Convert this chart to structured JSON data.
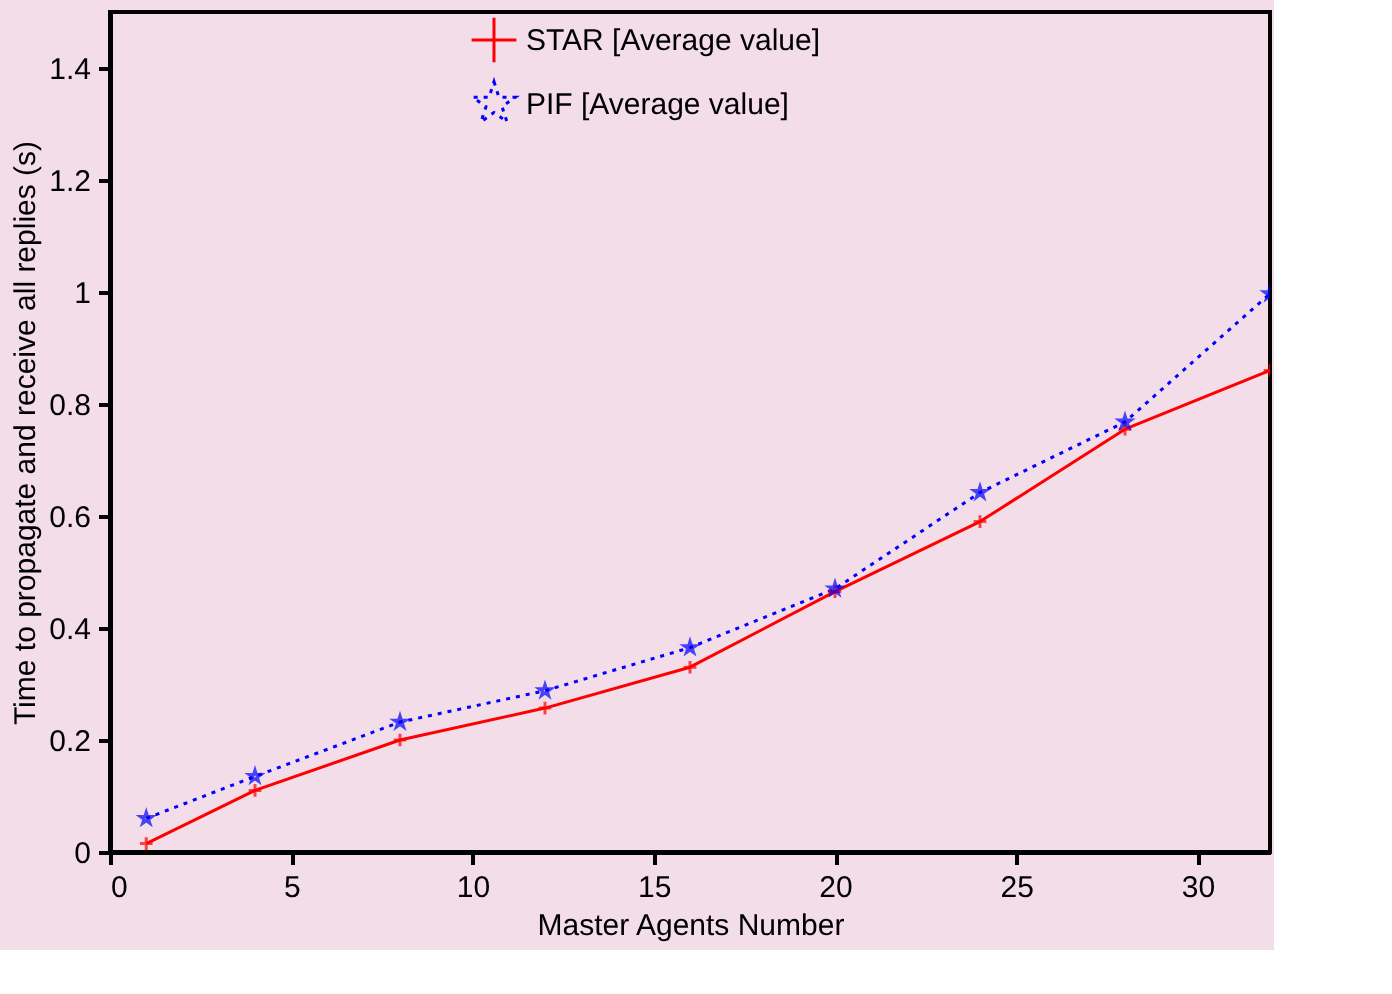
{
  "chart_data": {
    "type": "line",
    "xlabel": "Master Agents Number",
    "ylabel": "Time to propagate and receive all replies (s)",
    "x": [
      1,
      4,
      8,
      12,
      16,
      20,
      24,
      28,
      32
    ],
    "series": [
      {
        "name": "STAR [Average value]",
        "color": "#ff0000",
        "marker": "cross",
        "line_style": "solid",
        "values": [
          0.015,
          0.11,
          0.2,
          0.257,
          0.33,
          0.465,
          0.59,
          0.755,
          0.86
        ]
      },
      {
        "name": "PIF [Average value]",
        "color": "#0000ff",
        "marker": "star",
        "line_style": "dotted",
        "values": [
          0.06,
          0.135,
          0.232,
          0.288,
          0.365,
          0.47,
          0.642,
          0.768,
          0.997
        ]
      }
    ],
    "xlim": [
      0,
      32
    ],
    "xticks": [
      0,
      5,
      10,
      15,
      20,
      25,
      30
    ],
    "ylim": [
      0,
      1.5
    ],
    "yticks": [
      0,
      0.2,
      0.4,
      0.6,
      0.8,
      1,
      1.2,
      1.4
    ],
    "grid": false,
    "legend": "top"
  }
}
